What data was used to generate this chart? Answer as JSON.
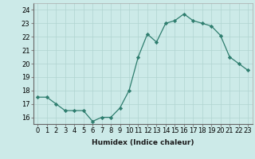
{
  "x": [
    0,
    1,
    2,
    3,
    4,
    5,
    6,
    7,
    8,
    9,
    10,
    11,
    12,
    13,
    14,
    15,
    16,
    17,
    18,
    19,
    20,
    21,
    22,
    23
  ],
  "y": [
    17.5,
    17.5,
    17.0,
    16.5,
    16.5,
    16.5,
    15.7,
    16.0,
    16.0,
    16.7,
    18.0,
    20.5,
    22.2,
    21.6,
    23.0,
    23.2,
    23.7,
    23.2,
    23.0,
    22.8,
    22.1,
    20.5,
    20.0,
    19.5
  ],
  "line_color": "#2e7d6e",
  "marker": "D",
  "marker_size": 2.2,
  "bg_color": "#cceae8",
  "grid_color": "#b0d4d0",
  "xlabel": "Humidex (Indice chaleur)",
  "xlim": [
    -0.5,
    23.5
  ],
  "ylim": [
    15.5,
    24.5
  ],
  "yticks": [
    16,
    17,
    18,
    19,
    20,
    21,
    22,
    23,
    24
  ],
  "xticks": [
    0,
    1,
    2,
    3,
    4,
    5,
    6,
    7,
    8,
    9,
    10,
    11,
    12,
    13,
    14,
    15,
    16,
    17,
    18,
    19,
    20,
    21,
    22,
    23
  ],
  "xtick_labels": [
    "0",
    "1",
    "2",
    "3",
    "4",
    "5",
    "6",
    "7",
    "8",
    "9",
    "10",
    "11",
    "12",
    "13",
    "14",
    "15",
    "16",
    "17",
    "18",
    "19",
    "20",
    "21",
    "22",
    "23"
  ],
  "label_fontsize": 6.5,
  "tick_fontsize": 6.0
}
